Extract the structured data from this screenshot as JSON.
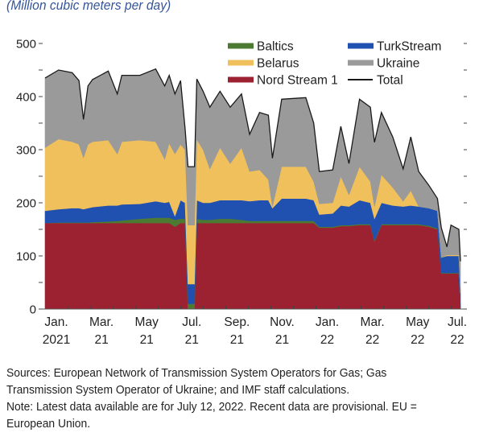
{
  "chart_data": {
    "type": "area",
    "stacked": true,
    "subtitle": "(Million cubic meters per day)",
    "ylabel": "",
    "ylim": [
      0,
      500
    ],
    "yticks": [
      0,
      100,
      200,
      300,
      400,
      500
    ],
    "xlabel": "",
    "x_unit": "months since Jan. 1, 2021",
    "xlim": [
      0,
      18.4
    ],
    "xtick_labels": [
      {
        "line1": "Jan.",
        "line2": "2021",
        "x": 0.5
      },
      {
        "line1": "Mar.",
        "line2": "21",
        "x": 2.5
      },
      {
        "line1": "May",
        "line2": "21",
        "x": 4.5
      },
      {
        "line1": "Jul.",
        "line2": "21",
        "x": 6.5
      },
      {
        "line1": "Sep.",
        "line2": "21",
        "x": 8.5
      },
      {
        "line1": "Nov.",
        "line2": "21",
        "x": 10.5
      },
      {
        "line1": "Jan.",
        "line2": "22",
        "x": 12.5
      },
      {
        "line1": "Mar.",
        "line2": "22",
        "x": 14.5
      },
      {
        "line1": "May",
        "line2": "22",
        "x": 16.5
      },
      {
        "line1": "Jul.",
        "line2": "22",
        "x": 18.3
      }
    ],
    "legend_position": "top-right",
    "x": [
      0,
      0.6,
      1.2,
      1.5,
      1.7,
      1.9,
      2.1,
      2.8,
      3.2,
      3.4,
      4.2,
      4.9,
      5.3,
      5.5,
      5.75,
      6.0,
      6.2,
      6.33,
      6.62,
      6.72,
      7.0,
      7.3,
      7.75,
      8.2,
      8.7,
      9.06,
      9.5,
      9.89,
      10.07,
      10.48,
      11.55,
      11.9,
      12.15,
      12.74,
      13.1,
      13.46,
      13.93,
      14.41,
      14.59,
      14.9,
      15.4,
      15.86,
      16.2,
      16.55,
      17.0,
      17.38,
      17.55,
      17.8,
      17.98,
      18.33,
      18.4
    ],
    "series": [
      {
        "name": "Nord Stream 1",
        "color": "#9c2231",
        "values": [
          162,
          162,
          162,
          162,
          162,
          162,
          162,
          162,
          162,
          162,
          162,
          162,
          162,
          162,
          155,
          162,
          162,
          0,
          0,
          162,
          162,
          162,
          162,
          162,
          162,
          162,
          162,
          162,
          162,
          162,
          162,
          162,
          153,
          153,
          156,
          156,
          158,
          158,
          127,
          158,
          158,
          158,
          158,
          158,
          155,
          150,
          67,
          67,
          67,
          67,
          2
        ]
      },
      {
        "name": "Baltics",
        "color": "#4c7a32",
        "values": [
          0,
          1,
          1,
          1,
          1,
          1,
          2,
          3,
          4,
          5,
          8,
          10,
          10,
          10,
          13,
          8,
          8,
          10,
          10,
          8,
          6,
          6,
          8,
          8,
          6,
          4,
          4,
          4,
          4,
          4,
          4,
          4,
          2,
          2,
          2,
          2,
          2,
          2,
          2,
          2,
          2,
          2,
          2,
          2,
          2,
          2,
          1,
          1,
          1,
          1,
          0
        ]
      },
      {
        "name": "TurkStream",
        "color": "#2050b0",
        "values": [
          23,
          25,
          27,
          27,
          25,
          27,
          28,
          30,
          29,
          30,
          28,
          31,
          28,
          30,
          7,
          35,
          30,
          37,
          37,
          35,
          32,
          32,
          35,
          35,
          37,
          37,
          39,
          39,
          24,
          42,
          42,
          39,
          23,
          25,
          37,
          35,
          45,
          40,
          41,
          40,
          35,
          33,
          35,
          33,
          33,
          33,
          29,
          32,
          32,
          32,
          28
        ]
      },
      {
        "name": "Belarus",
        "color": "#f0c05c",
        "values": [
          119,
          132,
          125,
          120,
          97,
          120,
          123,
          123,
          97,
          118,
          120,
          112,
          82,
          110,
          117,
          105,
          100,
          111,
          111,
          114,
          100,
          64,
          99,
          69,
          99,
          56,
          57,
          39,
          3,
          60,
          60,
          35,
          20,
          20,
          55,
          22,
          63,
          40,
          23,
          53,
          34,
          10,
          28,
          0,
          0,
          0,
          0,
          2,
          2,
          2,
          0
        ]
      },
      {
        "name": "Ukraine",
        "color": "#9a9a9a",
        "values": [
          131,
          130,
          130,
          120,
          72,
          110,
          117,
          130,
          113,
          125,
          122,
          137,
          138,
          128,
          113,
          120,
          40,
          110,
          110,
          114,
          110,
          116,
          106,
          106,
          101,
          70,
          108,
          121,
          91,
          127,
          130,
          110,
          61,
          62,
          94,
          59,
          127,
          140,
          121,
          117,
          95,
          61,
          101,
          66,
          43,
          23,
          56,
          15,
          56,
          48,
          60
        ]
      }
    ],
    "total": {
      "name": "Total",
      "color": "#1a1a1a"
    },
    "legend": [
      {
        "label": "Baltics",
        "color": "#4c7a32",
        "kind": "swatch"
      },
      {
        "label": "TurkStream",
        "color": "#2050b0",
        "kind": "swatch"
      },
      {
        "label": "Belarus",
        "color": "#f0c05c",
        "kind": "swatch"
      },
      {
        "label": "Ukraine",
        "color": "#9a9a9a",
        "kind": "swatch"
      },
      {
        "label": "Nord Stream 1",
        "color": "#9c2231",
        "kind": "swatch"
      },
      {
        "label": "Total",
        "color": "#1a1a1a",
        "kind": "line"
      }
    ]
  },
  "notes": {
    "line1": "Sources: European Network of Transmission System Operators for Gas; Gas",
    "line2": "Transmission System Operator of Ukraine; and IMF staff calculations.",
    "line3": "Note: Latest data available are for July 12, 2022. Recent data are provisional. EU =",
    "line4": "European Union."
  }
}
